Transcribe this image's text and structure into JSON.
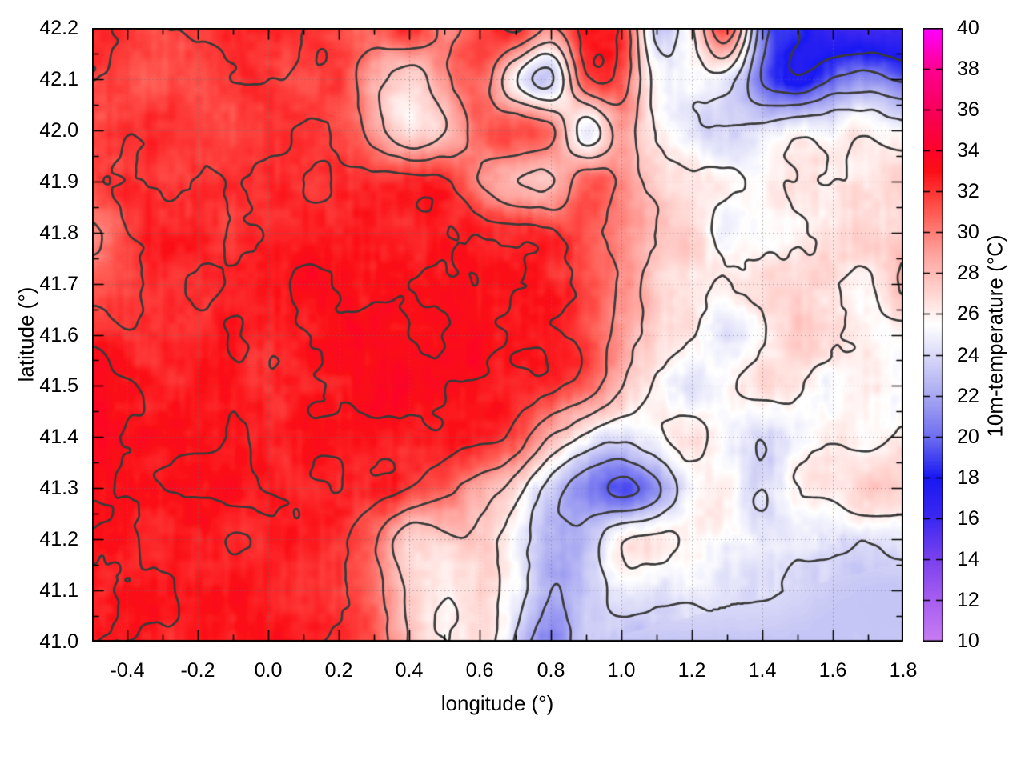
{
  "figure": {
    "background": "#ffffff",
    "axis_color": "#000000",
    "contour_color": "#3a3a3a",
    "grid_color": "#6e6e6e"
  },
  "axes": {
    "x": {
      "label": "longitude (°)",
      "min": -0.5,
      "max": 1.8,
      "major_ticks": [
        "-0.4",
        "-0.2",
        "0.0",
        "0.2",
        "0.4",
        "0.6",
        "0.8",
        "1.0",
        "1.2",
        "1.4",
        "1.6",
        "1.8"
      ],
      "minor_step": 0.1
    },
    "y": {
      "label": "latitude (°)",
      "min": 41.0,
      "max": 42.2,
      "major_ticks": [
        "42.2",
        "42.1",
        "42.0",
        "41.9",
        "41.8",
        "41.7",
        "41.6",
        "41.5",
        "41.4",
        "41.3",
        "41.2",
        "41.1",
        "41.0"
      ],
      "minor_step": 0.05
    }
  },
  "colorbar": {
    "label": "10m-temperature (°C)",
    "min": 10,
    "max": 40,
    "ticks": [
      "40",
      "38",
      "36",
      "34",
      "32",
      "30",
      "28",
      "26",
      "24",
      "22",
      "20",
      "18",
      "16",
      "14",
      "12",
      "10"
    ],
    "palette": [
      [
        10,
        "#c87cf2"
      ],
      [
        12,
        "#a75ef0"
      ],
      [
        14,
        "#7a42ee"
      ],
      [
        16,
        "#3c28f0"
      ],
      [
        18,
        "#1818f2"
      ],
      [
        20,
        "#6e6ef0"
      ],
      [
        22,
        "#a8a8f2"
      ],
      [
        24,
        "#dadaf8"
      ],
      [
        25.5,
        "#ffffff"
      ],
      [
        27,
        "#ffd6d2"
      ],
      [
        29,
        "#ffa29c"
      ],
      [
        31,
        "#ff5a52"
      ],
      [
        33,
        "#fb0f16"
      ],
      [
        34,
        "#fc0428"
      ],
      [
        36,
        "#f8005a"
      ],
      [
        38,
        "#ff0090"
      ],
      [
        40,
        "#ff00ff"
      ]
    ]
  },
  "chart_data": {
    "type": "heatmap",
    "xlabel": "longitude (°)",
    "ylabel": "latitude (°)",
    "value_label": "10m-temperature (°C)",
    "x_range": [
      -0.5,
      1.8
    ],
    "y_range": [
      41.0,
      42.2
    ],
    "value_range": [
      10,
      40
    ],
    "grid_lines": "dotted",
    "grid": {
      "lon_start": -0.5,
      "lon_step": 0.1,
      "cols": 24,
      "lat_start": 42.2,
      "lat_step": -0.1,
      "rows": 13
    },
    "contour_levels": [
      18,
      20,
      22,
      24,
      26,
      28,
      30,
      32,
      33
    ],
    "temps": [
      [
        32.2,
        32.0,
        31.6,
        31.9,
        32.3,
        32.4,
        32.0,
        31.6,
        31.0,
        32.2,
        30.0,
        31.5,
        32.3,
        29.5,
        32.5,
        32.0,
        23.5,
        26.0,
        31.5,
        21.0,
        18.0,
        16.5,
        16.0,
        16.2
      ],
      [
        31.8,
        31.5,
        31.2,
        31.6,
        32.0,
        32.0,
        31.5,
        31.8,
        28.5,
        27.0,
        29.5,
        31.0,
        26.0,
        23.5,
        31.5,
        31.0,
        25.5,
        25.0,
        25.0,
        20.0,
        18.0,
        20.0,
        21.0,
        20.0
      ],
      [
        31.5,
        31.8,
        32.0,
        31.8,
        31.5,
        31.8,
        32.0,
        31.5,
        29.0,
        26.5,
        28.0,
        30.5,
        31.5,
        30.5,
        25.0,
        29.0,
        26.0,
        24.5,
        24.0,
        24.5,
        25.5,
        25.5,
        26.0,
        25.0
      ],
      [
        32.0,
        32.2,
        32.0,
        31.8,
        32.2,
        32.4,
        32.2,
        32.0,
        32.3,
        32.5,
        32.2,
        30.0,
        28.0,
        27.5,
        31.0,
        29.5,
        27.5,
        26.5,
        26.0,
        25.5,
        26.5,
        26.0,
        26.5,
        27.5
      ],
      [
        29.5,
        31.8,
        32.5,
        32.3,
        32.0,
        32.4,
        32.6,
        32.5,
        32.3,
        32.6,
        32.8,
        32.5,
        32.3,
        32.0,
        31.0,
        29.5,
        28.0,
        27.0,
        25.0,
        25.5,
        26.0,
        26.5,
        27.0,
        27.0
      ],
      [
        31.0,
        31.3,
        32.2,
        32.0,
        32.5,
        33.0,
        33.2,
        33.0,
        32.8,
        33.0,
        33.2,
        33.0,
        32.8,
        32.5,
        31.5,
        29.5,
        27.5,
        26.5,
        26.0,
        26.5,
        27.0,
        26.5,
        26.0,
        28.0
      ],
      [
        32.5,
        32.0,
        32.2,
        32.5,
        32.8,
        32.5,
        32.8,
        33.2,
        33.4,
        33.2,
        33.0,
        33.3,
        33.0,
        32.5,
        31.5,
        29.0,
        27.0,
        26.0,
        24.5,
        26.0,
        27.0,
        26.5,
        26.0,
        25.5
      ],
      [
        33.8,
        33.0,
        32.5,
        32.8,
        32.5,
        32.2,
        32.6,
        33.0,
        33.3,
        33.5,
        33.2,
        33.0,
        32.8,
        32.3,
        31.0,
        28.0,
        26.0,
        24.8,
        26.0,
        26.5,
        26.0,
        25.5,
        26.0,
        25.0
      ],
      [
        33.8,
        33.2,
        32.8,
        33.0,
        32.8,
        32.5,
        32.8,
        33.0,
        32.8,
        32.5,
        32.8,
        32.5,
        31.5,
        28.0,
        25.5,
        24.5,
        25.5,
        26.5,
        25.0,
        24.0,
        25.5,
        26.0,
        25.5,
        26.5
      ],
      [
        33.5,
        33.0,
        32.8,
        33.2,
        33.0,
        32.8,
        32.5,
        32.8,
        32.5,
        32.0,
        30.5,
        29.0,
        27.0,
        23.5,
        21.0,
        19.3,
        21.5,
        25.0,
        26.0,
        24.0,
        26.0,
        26.5,
        27.5,
        27.0
      ],
      [
        32.8,
        33.0,
        32.5,
        32.8,
        32.2,
        32.5,
        32.8,
        32.3,
        30.5,
        27.0,
        27.5,
        27.5,
        25.0,
        22.5,
        23.0,
        26.0,
        26.5,
        26.0,
        25.5,
        24.8,
        24.6,
        24.5,
        24.4,
        24.6
      ],
      [
        32.5,
        32.8,
        33.0,
        32.5,
        32.8,
        32.5,
        32.2,
        32.0,
        30.5,
        27.5,
        26.3,
        27.0,
        25.0,
        22.0,
        23.0,
        25.0,
        24.8,
        24.5,
        24.3,
        24.2,
        23.8,
        23.4,
        23.2,
        23.2
      ],
      [
        32.8,
        33.0,
        32.5,
        32.8,
        32.5,
        32.8,
        32.5,
        32.0,
        31.0,
        28.0,
        26.0,
        27.0,
        24.0,
        21.0,
        23.3,
        23.2,
        23.2,
        23.2,
        23.2,
        23.2,
        23.2,
        23.2,
        23.2,
        23.2
      ]
    ]
  }
}
